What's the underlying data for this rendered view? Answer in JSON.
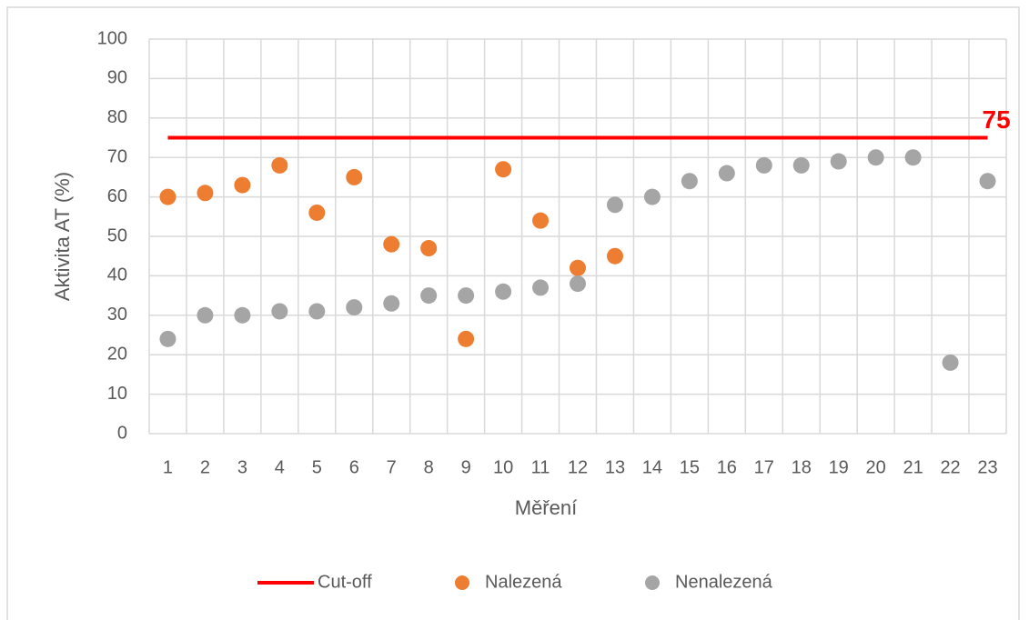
{
  "chart_data": {
    "type": "scatter",
    "categories": [
      "1",
      "2",
      "3",
      "4",
      "5",
      "6",
      "7",
      "8",
      "9",
      "10",
      "11",
      "12",
      "13",
      "14",
      "15",
      "16",
      "17",
      "18",
      "19",
      "20",
      "21",
      "22",
      "23"
    ],
    "series": [
      {
        "name": "Cut-off",
        "type": "line",
        "color": "#ff0000",
        "values": [
          75,
          75,
          75,
          75,
          75,
          75,
          75,
          75,
          75,
          75,
          75,
          75,
          75,
          75,
          75,
          75,
          75,
          75,
          75,
          75,
          75,
          75,
          75
        ]
      },
      {
        "name": "Nalezená",
        "type": "scatter",
        "color": "#ed7d31",
        "values": [
          60,
          61,
          63,
          68,
          56,
          65,
          48,
          47,
          24,
          67,
          54,
          42,
          45,
          null,
          null,
          null,
          null,
          null,
          null,
          null,
          null,
          null,
          null
        ]
      },
      {
        "name": "Nenalezená",
        "type": "scatter",
        "color": "#a5a5a5",
        "values": [
          24,
          30,
          30,
          31,
          31,
          32,
          33,
          35,
          35,
          36,
          37,
          38,
          58,
          60,
          64,
          66,
          68,
          68,
          69,
          70,
          70,
          18,
          64
        ]
      }
    ],
    "x_label": "Měření",
    "y_label": "Aktivita AT (%)",
    "ylim": [
      0,
      100
    ],
    "yticks": [
      0,
      10,
      20,
      30,
      40,
      50,
      60,
      70,
      80,
      90,
      100
    ],
    "grid": true,
    "legend": "bottom"
  }
}
